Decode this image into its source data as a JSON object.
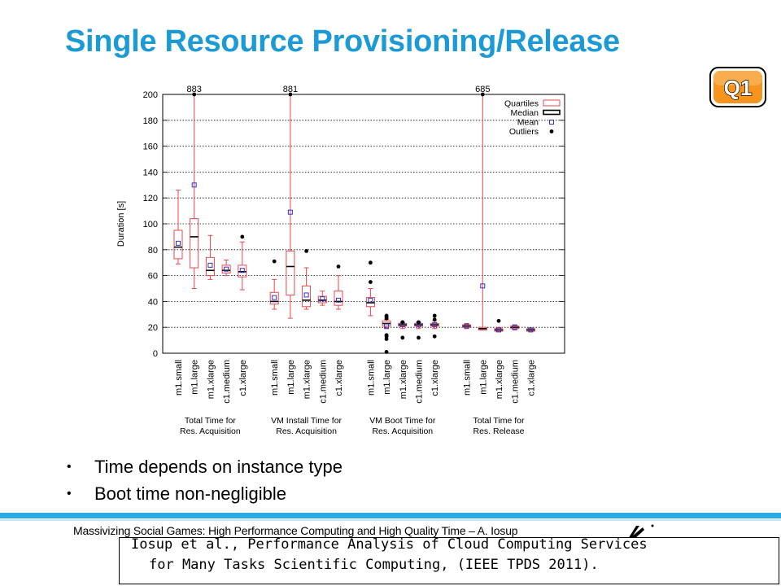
{
  "slide": {
    "title": "Single Resource Provisioning/Release",
    "badge": "Q1",
    "bullets": [
      "Time depends on instance type",
      "Boot time non-negligible"
    ],
    "footer_credit": "Massivizing Social Games: High Performance Computing and High Quality Time – A. Iosup",
    "citation_line1": "Iosup et al., Performance Analysis of Cloud Computing Services",
    "citation_line2": "for Many Tasks Scientific Computing, (IEEE TPDS 2011).",
    "colors": {
      "title": "#1c9ad6",
      "badge": "#f7941d",
      "box": "#e8484e",
      "median": "#000000",
      "mean": "#3333cc",
      "footer": "#29abe2"
    }
  },
  "chart_data": {
    "type": "box",
    "title": "",
    "xlabel": "",
    "ylabel": "Duration [s]",
    "ylim": [
      0,
      200
    ],
    "yticks": [
      0,
      20,
      40,
      60,
      80,
      100,
      120,
      140,
      160,
      180,
      200
    ],
    "grid": true,
    "legend_position": "top-right",
    "legend": [
      "Quartiles",
      "Median",
      "Mean",
      "Outliers"
    ],
    "groups": [
      {
        "name": "Total Time for Res. Acquisition",
        "categories": [
          "m1.small",
          "m1.large",
          "m1.xlarge",
          "c1.medium",
          "c1.xlarge"
        ],
        "boxes": [
          {
            "min": 69,
            "q1": 73,
            "median": 82,
            "q3": 95,
            "max": 126,
            "mean": 85,
            "outliers": []
          },
          {
            "min": 50,
            "q1": 66,
            "median": 90,
            "q3": 104,
            "max": 200,
            "mean": 130,
            "outliers": [
              200
            ]
          },
          {
            "min": 57,
            "q1": 60,
            "median": 64,
            "q3": 74,
            "max": 91,
            "mean": 68,
            "outliers": []
          },
          {
            "min": 60,
            "q1": 62,
            "median": 64,
            "q3": 68,
            "max": 72,
            "mean": 65,
            "outliers": []
          },
          {
            "min": 49,
            "q1": 59,
            "median": 63,
            "q3": 68,
            "max": 86,
            "mean": 64,
            "outliers": [
              90
            ]
          }
        ]
      },
      {
        "name": "VM Install Time for Res. Acquisition",
        "categories": [
          "m1.small",
          "m1.large",
          "m1.xlarge",
          "c1.medium",
          "c1.xlarge"
        ],
        "boxes": [
          {
            "min": 34,
            "q1": 38,
            "median": 40,
            "q3": 47,
            "max": 57,
            "mean": 43,
            "outliers": [
              71
            ]
          },
          {
            "min": 27,
            "q1": 45,
            "median": 67,
            "q3": 79,
            "max": 200,
            "mean": 109,
            "outliers": [
              200
            ]
          },
          {
            "min": 34,
            "q1": 36,
            "median": 41,
            "q3": 52,
            "max": 66,
            "mean": 45,
            "outliers": [
              79
            ]
          },
          {
            "min": 37,
            "q1": 39,
            "median": 41,
            "q3": 44,
            "max": 48,
            "mean": 42,
            "outliers": []
          },
          {
            "min": 34,
            "q1": 37,
            "median": 40,
            "q3": 48,
            "max": 60,
            "mean": 41,
            "outliers": [
              67
            ]
          }
        ]
      },
      {
        "name": "VM Boot Time for Res. Acquisition",
        "categories": [
          "m1.small",
          "m1.large",
          "m1.xlarge",
          "c1.medium",
          "c1.xlarge"
        ],
        "boxes": [
          {
            "min": 29,
            "q1": 36,
            "median": 39,
            "q3": 43,
            "max": 50,
            "mean": 41,
            "outliers": [
              55,
              70
            ]
          },
          {
            "min": 19,
            "q1": 21,
            "median": 23,
            "q3": 25,
            "max": 26,
            "mean": 21,
            "outliers": [
              1,
              11,
              13,
              14,
              27,
              28,
              29
            ]
          },
          {
            "min": 19,
            "q1": 21,
            "median": 22,
            "q3": 23,
            "max": 24,
            "mean": 22,
            "outliers": [
              12,
              24
            ]
          },
          {
            "min": 19,
            "q1": 21,
            "median": 22,
            "q3": 23,
            "max": 24,
            "mean": 22,
            "outliers": [
              12,
              24
            ]
          },
          {
            "min": 19,
            "q1": 21,
            "median": 22,
            "q3": 23,
            "max": 25,
            "mean": 22,
            "outliers": [
              13,
              26,
              29
            ]
          }
        ]
      },
      {
        "name": "Total Time for Res. Release",
        "categories": [
          "m1.small",
          "m1.large",
          "m1.xlarge",
          "c1.medium",
          "c1.xlarge"
        ],
        "boxes": [
          {
            "min": 19,
            "q1": 20,
            "median": 21,
            "q3": 22,
            "max": 23,
            "mean": 21,
            "outliers": []
          },
          {
            "min": 18,
            "q1": 18,
            "median": 19,
            "q3": 20,
            "max": 200,
            "mean": 52,
            "outliers": [
              200
            ]
          },
          {
            "min": 17,
            "q1": 17,
            "median": 18,
            "q3": 19,
            "max": 20,
            "mean": 18,
            "outliers": [
              25
            ]
          },
          {
            "min": 18,
            "q1": 19,
            "median": 20,
            "q3": 21,
            "max": 22,
            "mean": 20,
            "outliers": []
          },
          {
            "min": 17,
            "q1": 17,
            "median": 18,
            "q3": 19,
            "max": 19,
            "mean": 18,
            "outliers": []
          }
        ]
      }
    ],
    "annotations": [
      {
        "text": "883",
        "group": 0,
        "box": 1
      },
      {
        "text": "881",
        "group": 1,
        "box": 1
      },
      {
        "text": "685",
        "group": 3,
        "box": 1
      }
    ]
  }
}
